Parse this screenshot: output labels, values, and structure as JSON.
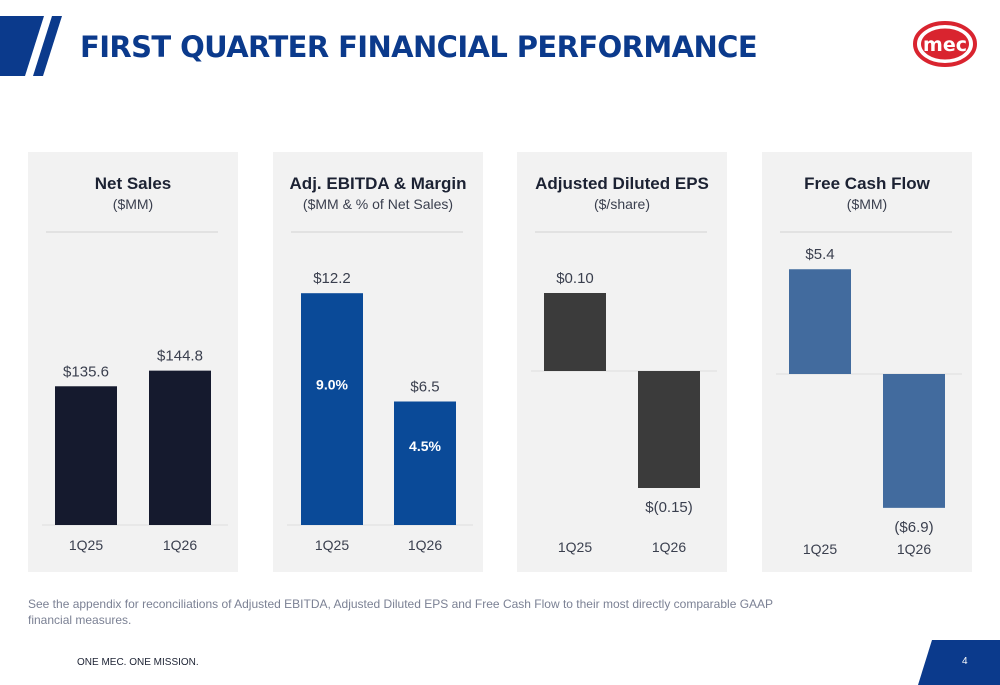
{
  "header": {
    "title": "FIRST QUARTER FINANCIAL PERFORMANCE",
    "logo_text": "mec"
  },
  "colors": {
    "brand_blue": "#0b3a8c",
    "logo_red": "#d9242f",
    "navy_bar": "#151a2e",
    "blue_bar": "#0a4a98",
    "gray_bar": "#3b3b3b",
    "steel_bar": "#426b9e"
  },
  "chart_data": [
    {
      "type": "bar",
      "title": "Net Sales",
      "subtitle": "($MM)",
      "categories": [
        "1Q25",
        "1Q26"
      ],
      "values": [
        135.6,
        144.8
      ],
      "labels": [
        "$135.6",
        "$144.8"
      ]
    },
    {
      "type": "bar",
      "title": "Adj. EBITDA & Margin",
      "subtitle": "($MM & % of Net Sales)",
      "categories": [
        "1Q25",
        "1Q26"
      ],
      "values": [
        12.2,
        6.5
      ],
      "labels": [
        "$12.2",
        "$6.5"
      ],
      "margins": [
        9.0,
        4.5
      ],
      "margin_labels": [
        "9.0%",
        "4.5%"
      ]
    },
    {
      "type": "bar",
      "title": "Adjusted Diluted EPS",
      "subtitle": "($/share)",
      "categories": [
        "1Q25",
        "1Q26"
      ],
      "values": [
        0.1,
        -0.15
      ],
      "labels": [
        "$0.10",
        "$(0.15)"
      ]
    },
    {
      "type": "bar",
      "title": "Free Cash Flow",
      "subtitle": "($MM)",
      "categories": [
        "1Q25",
        "1Q26"
      ],
      "values": [
        5.4,
        -6.9
      ],
      "labels": [
        "$5.4",
        "($6.9)"
      ]
    }
  ],
  "footnote": "See the appendix for reconciliations of Adjusted EBITDA, Adjusted Diluted EPS and Free Cash Flow to their most directly comparable GAAP financial measures.",
  "footer": {
    "tagline": "ONE MEC. ONE MISSION.",
    "page_number": "4"
  }
}
